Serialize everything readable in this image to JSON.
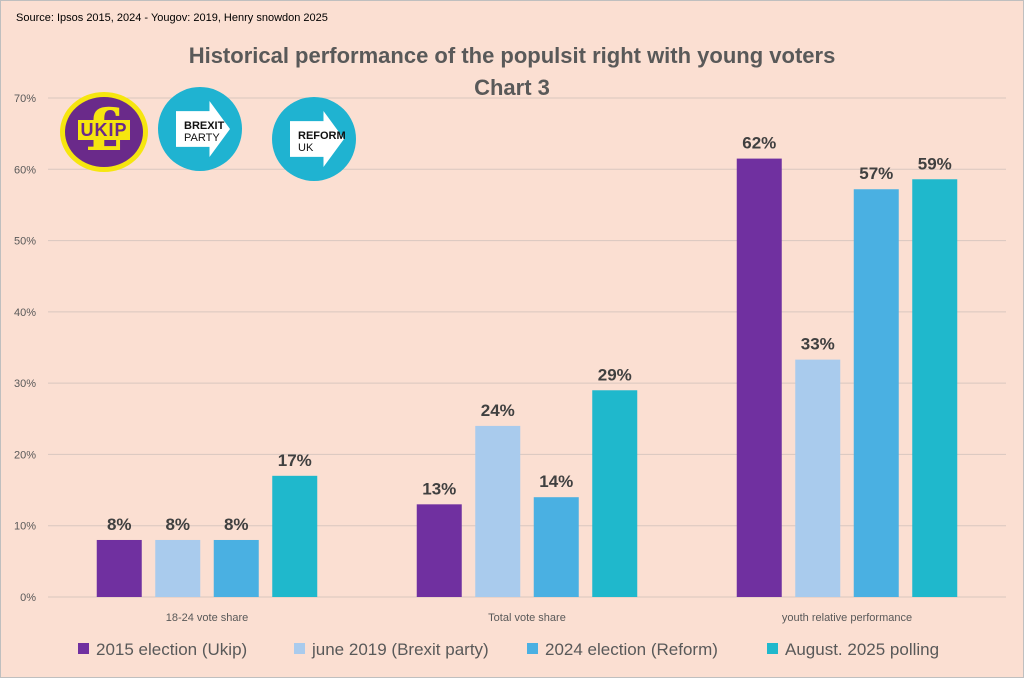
{
  "source": "Source: Ipsos 2015, 2024 - Yougov: 2019, Henry snowdon 2025",
  "title_line1": "Historical performance of the populsit right with young voters",
  "title_line2": "Chart 3",
  "logos": {
    "ukip": "UKIP",
    "ukip_symbol": "£",
    "brexit_line1": "BREXIT",
    "brexit_line2": "PARTY",
    "reform_line1": "REFORM",
    "reform_line2": "UK"
  },
  "colors": {
    "series": [
      "#7030a0",
      "#a9cbed",
      "#4ab0e2",
      "#1fb8cc"
    ],
    "grid": "#d9c7bf",
    "axis_text": "#595959",
    "label_text": "#404040"
  },
  "chart_data": {
    "type": "bar",
    "categories": [
      "18-24 vote share",
      "Total vote share",
      "youth relative performance"
    ],
    "series": [
      {
        "name": "2015 election (Ukip)",
        "values": [
          8,
          13,
          61.5
        ],
        "labels": [
          "8%",
          "13%",
          "62%"
        ]
      },
      {
        "name": "june 2019 (Brexit party)",
        "values": [
          8,
          24,
          33.3
        ],
        "labels": [
          "8%",
          "24%",
          "33%"
        ]
      },
      {
        "name": "2024 election (Reform)",
        "values": [
          8,
          14,
          57.2
        ],
        "labels": [
          "8%",
          "14%",
          "57%"
        ]
      },
      {
        "name": "August. 2025 polling",
        "values": [
          17,
          29,
          58.6
        ],
        "labels": [
          "17%",
          "29%",
          "59%"
        ]
      }
    ],
    "ylim": [
      0,
      70
    ],
    "yticks": [
      0,
      10,
      20,
      30,
      40,
      50,
      60,
      70
    ],
    "ytick_labels": [
      "0%",
      "10%",
      "20%",
      "30%",
      "40%",
      "50%",
      "60%",
      "70%"
    ],
    "grid": true,
    "legend": "bottom"
  }
}
